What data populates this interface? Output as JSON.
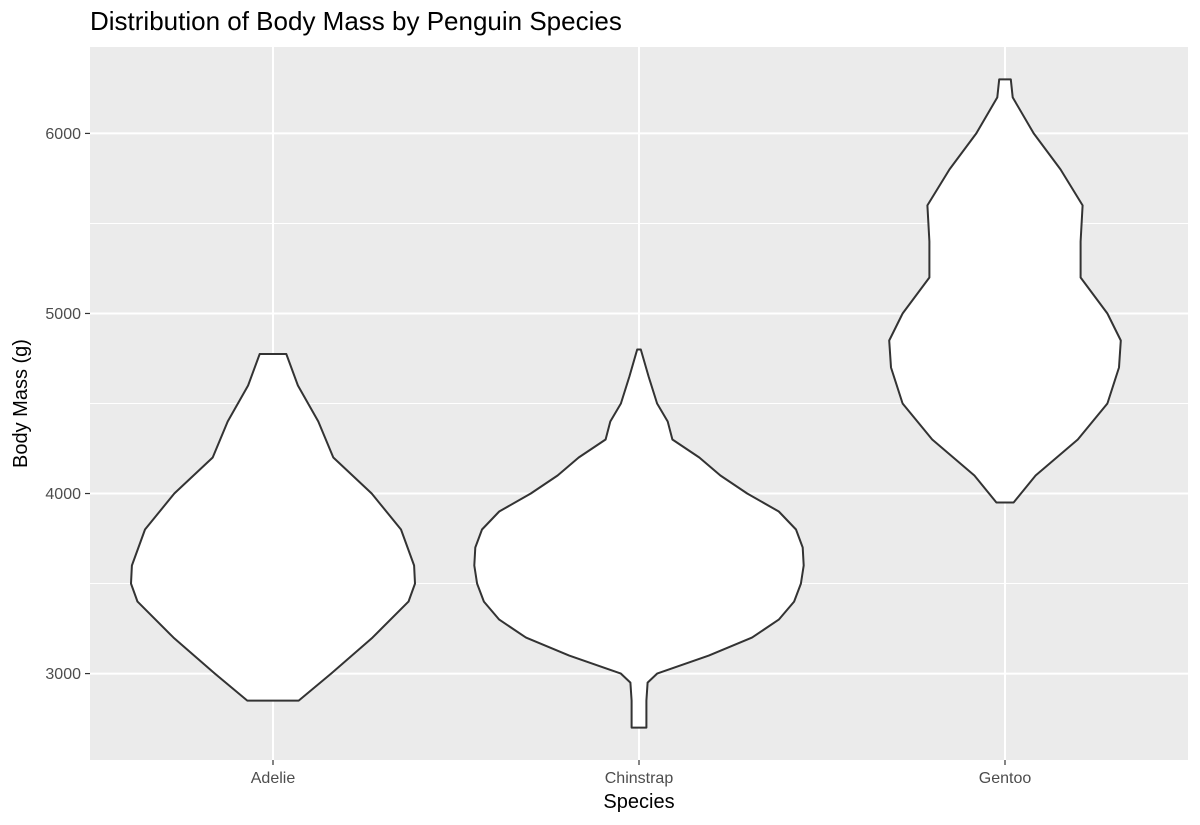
{
  "chart_data": {
    "type": "violin",
    "title": "Distribution of Body Mass by Penguin Species",
    "xlabel": "Species",
    "ylabel": "Body Mass (g)",
    "ylim": [
      2520,
      6480
    ],
    "yticks": [
      3000,
      4000,
      5000,
      6000
    ],
    "yminor": [
      3500,
      4500,
      5500
    ],
    "grid": true,
    "categories": [
      "Adelie",
      "Chinstrap",
      "Gentoo"
    ],
    "series": [
      {
        "category": "Adelie",
        "min": 2850,
        "max": 4775,
        "density_profile": [
          [
            2850,
            0.156
          ],
          [
            3000,
            0.353
          ],
          [
            3200,
            0.604
          ],
          [
            3400,
            0.823
          ],
          [
            3500,
            0.862
          ],
          [
            3600,
            0.857
          ],
          [
            3800,
            0.777
          ],
          [
            4000,
            0.599
          ],
          [
            4200,
            0.366
          ],
          [
            4400,
            0.275
          ],
          [
            4600,
            0.151
          ],
          [
            4775,
            0.081
          ]
        ]
      },
      {
        "category": "Chinstrap",
        "min": 2700,
        "max": 4800,
        "density_profile": [
          [
            2700,
            0.045
          ],
          [
            2850,
            0.045
          ],
          [
            2950,
            0.052
          ],
          [
            3000,
            0.11
          ],
          [
            3100,
            0.424
          ],
          [
            3200,
            0.686
          ],
          [
            3300,
            0.849
          ],
          [
            3400,
            0.942
          ],
          [
            3500,
            0.983
          ],
          [
            3600,
            1.0
          ],
          [
            3700,
            0.994
          ],
          [
            3800,
            0.953
          ],
          [
            3900,
            0.849
          ],
          [
            4000,
            0.657
          ],
          [
            4100,
            0.494
          ],
          [
            4200,
            0.366
          ],
          [
            4300,
            0.203
          ],
          [
            4400,
            0.174
          ],
          [
            4500,
            0.11
          ],
          [
            4650,
            0.058
          ],
          [
            4800,
            0.011
          ]
        ]
      },
      {
        "category": "Gentoo",
        "min": 3950,
        "max": 6300,
        "density_profile": [
          [
            3950,
            0.052
          ],
          [
            4100,
            0.186
          ],
          [
            4300,
            0.442
          ],
          [
            4500,
            0.622
          ],
          [
            4700,
            0.692
          ],
          [
            4850,
            0.703
          ],
          [
            5000,
            0.622
          ],
          [
            5200,
            0.459
          ],
          [
            5400,
            0.459
          ],
          [
            5600,
            0.471
          ],
          [
            5800,
            0.337
          ],
          [
            6000,
            0.174
          ],
          [
            6200,
            0.047
          ],
          [
            6300,
            0.035
          ]
        ]
      }
    ]
  }
}
